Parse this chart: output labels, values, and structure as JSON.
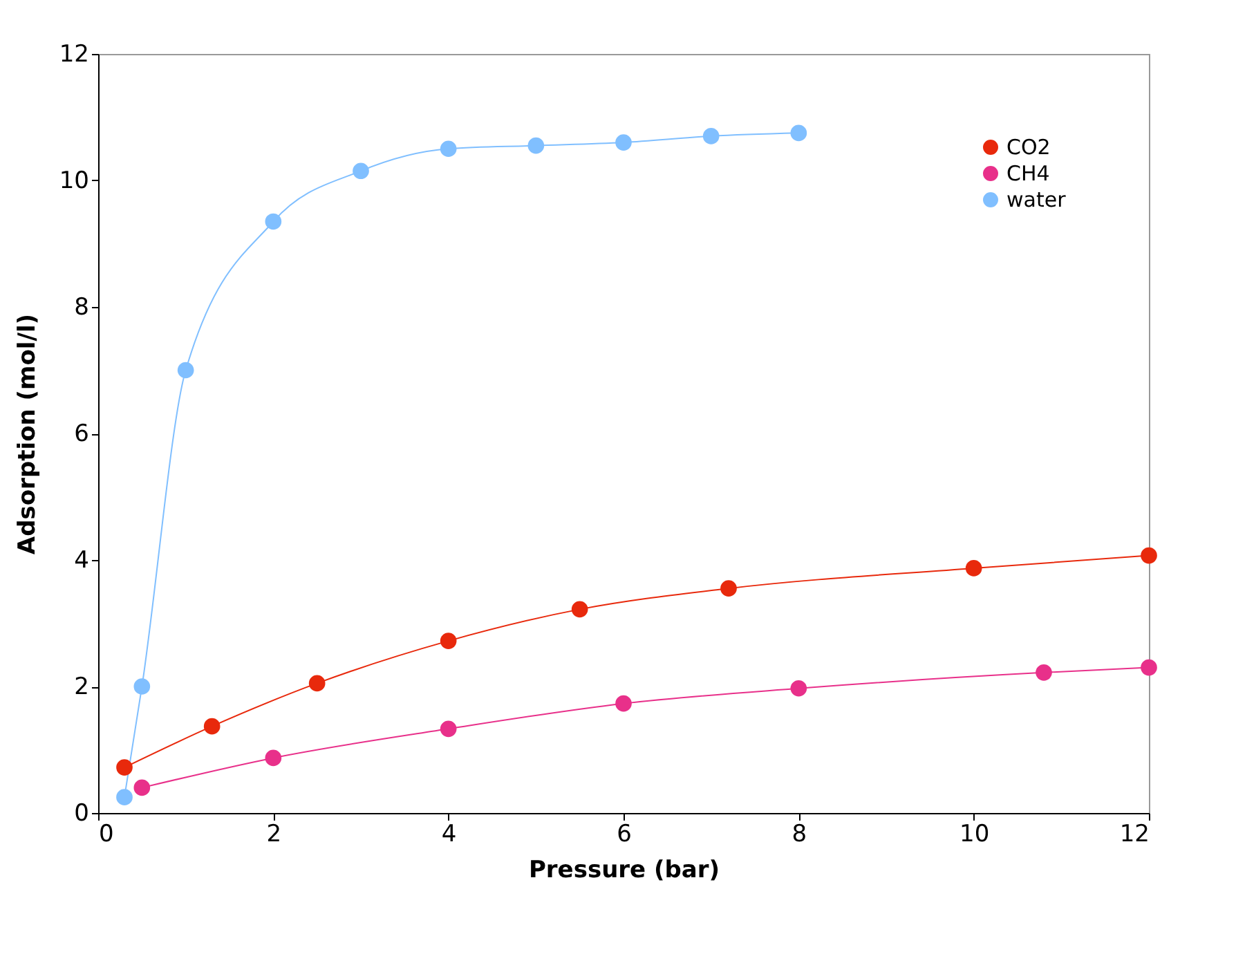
{
  "chart_data": {
    "type": "line",
    "xlabel": "Pressure (bar)",
    "ylabel": "Adsorption (mol/l)",
    "xlim": [
      0,
      12
    ],
    "xticks": [
      0,
      2,
      4,
      6,
      8,
      10,
      12
    ],
    "ylim": [
      0,
      12
    ],
    "yticks": [
      0,
      2,
      4,
      6,
      8,
      10,
      12
    ],
    "grid": false,
    "legend": "top right",
    "marker": "circle",
    "line_style": "solid",
    "series": [
      {
        "name": "CO2",
        "color": "#e8290c",
        "x": [
          0.3,
          1.3,
          2.5,
          4,
          5.5,
          7.2,
          10,
          12
        ],
        "values": [
          0.72,
          1.37,
          2.05,
          2.72,
          3.22,
          3.55,
          3.87,
          4.07
        ]
      },
      {
        "name": "CH4",
        "color": "#e8308a",
        "x": [
          0.5,
          2,
          4,
          6,
          8,
          10.8,
          12
        ],
        "values": [
          0.4,
          0.87,
          1.33,
          1.73,
          1.97,
          2.22,
          2.3
        ]
      },
      {
        "name": "water",
        "color": "#80bfff",
        "x": [
          0.3,
          0.5,
          1,
          2,
          3,
          4,
          5,
          6,
          7,
          8
        ],
        "values": [
          0.25,
          2.0,
          7.0,
          9.35,
          10.15,
          10.5,
          10.55,
          10.6,
          10.7,
          10.75
        ]
      }
    ]
  }
}
